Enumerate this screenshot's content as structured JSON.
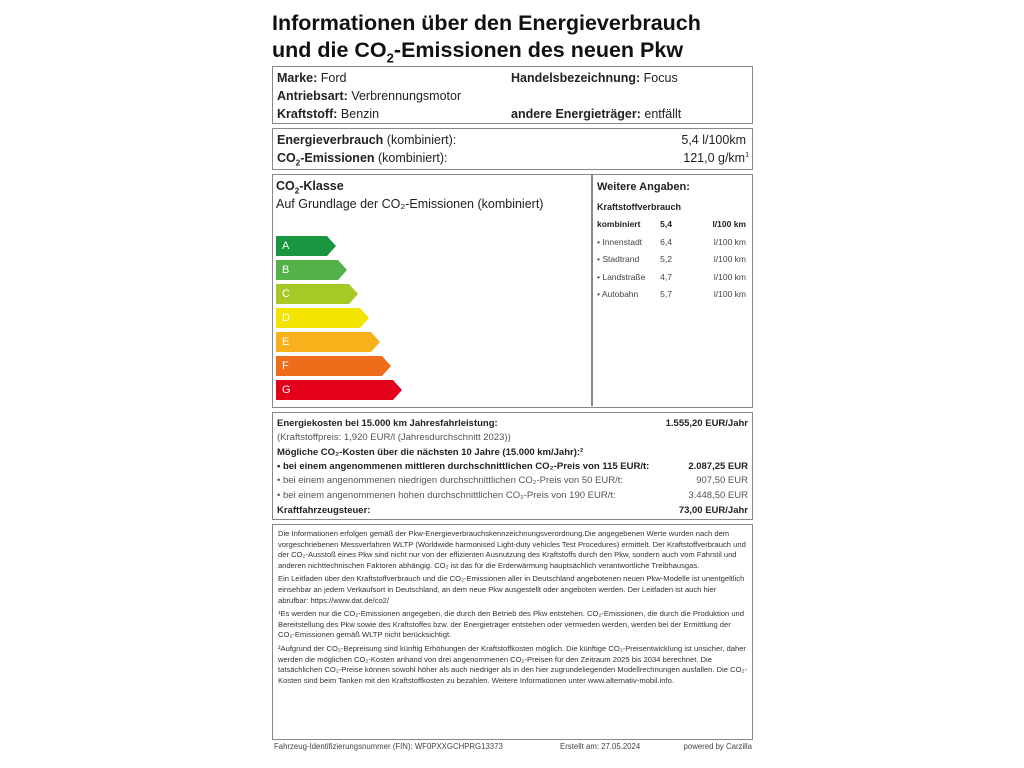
{
  "title": {
    "line1": "Informationen über den Energieverbrauch",
    "line2_pre": "und die CO",
    "line2_sub": "2",
    "line2_post": "-Emissionen des neuen Pkw"
  },
  "vehicle": {
    "marke_label": "Marke:",
    "marke": "Ford",
    "handel_label": "Handelsbezeichnung:",
    "handel": "Focus",
    "antrieb_label": "Antriebsart:",
    "antrieb": "Verbrennungsmotor",
    "kraftstoff_label": "Kraftstoff:",
    "kraftstoff": "Benzin",
    "andere_label": "andere Energieträger:",
    "andere": "entfällt"
  },
  "consumption": {
    "energy_label": "Energieverbrauch",
    "energy_qual": "(kombiniert):",
    "energy_value": "5,4 l/100km",
    "co2_label_pre": "CO",
    "co2_sub": "2",
    "co2_label_post": "-Emissionen",
    "co2_qual": "(kombiniert):",
    "co2_value": "121,0 g/km",
    "co2_sup": "1"
  },
  "co2class": {
    "heading_pre": "CO",
    "heading_sub": "2",
    "heading_post": "-Klasse",
    "subheading": "Auf Grundlage der CO₂-Emissionen (kombiniert)",
    "classes": [
      {
        "letter": "A",
        "color": "#1a9641"
      },
      {
        "letter": "B",
        "color": "#52b148"
      },
      {
        "letter": "C",
        "color": "#a6c925"
      },
      {
        "letter": "D",
        "color": "#f3e400"
      },
      {
        "letter": "E",
        "color": "#f7b21b"
      },
      {
        "letter": "F",
        "color": "#ee6c1a"
      },
      {
        "letter": "G",
        "color": "#e2001a"
      }
    ],
    "current": "D"
  },
  "further": {
    "heading": "Weitere Angaben:",
    "sub": "Kraftstoffverbrauch",
    "rows": [
      {
        "label": "kombiniert",
        "value": "5,4",
        "unit": "l/100 km",
        "bold": true
      },
      {
        "label": "• Innenstadt",
        "value": "6,4",
        "unit": "l/100 km"
      },
      {
        "label": "• Stadtrand",
        "value": "5,2",
        "unit": "l/100 km"
      },
      {
        "label": "• Landstraße",
        "value": "4,7",
        "unit": "l/100 km"
      },
      {
        "label": "• Autobahn",
        "value": "5,7",
        "unit": "l/100 km"
      }
    ]
  },
  "costs": {
    "energy_label": "Energiekosten bei 15.000 km Jahresfahrleistung:",
    "energy_value": "1.555,20 EUR/Jahr",
    "fuel_price": "(Kraftstoffpreis:  1,920 EUR/l (Jahresdurchschnitt 2023))",
    "co2_heading": "Mögliche CO₂-Kosten über die nächsten 10 Jahre (15.000 km/Jahr):²",
    "mid_label": "•  bei einem angenommenen mittleren durchschnittlichen CO₂-Preis von 115 EUR/t:",
    "mid_value": "2.087,25 EUR",
    "low_label": "•  bei einem angenommenen niedrigen durchschnittlichen CO₂-Preis von 50 EUR/t:",
    "low_value": "907,50 EUR",
    "high_label": "•  bei einem angenommenen hohen durchschnittlichen CO₂-Preis von 190 EUR/t:",
    "high_value": "3.448,50 EUR",
    "tax_label": "Kraftfahrzeugsteuer:",
    "tax_value": "73,00 EUR/Jahr"
  },
  "notes": {
    "p1": "Die Informationen erfolgen gemäß der Pkw-Energieverbrauchskennzeichnungsverordnung.Die angegebenen Werte wurden nach dem vorgeschriebenen Messverfahren WLTP (Worldwide harmonised Light-duty vehicles Test Procedures) ermittelt. Der Kraftstoffverbrauch und der CO₂-Ausstoß eines Pkw sind nicht nur von der effizienten Ausnutzung des Kraftstoffs durch den Pkw, sondern auch vom Fahrstil und anderen nichttechnischen Faktoren abhängig. CO₂ ist das für die Erderwärmung hauptsächlich verantwortliche Treibhausgas.",
    "p2": "Ein Leitfaden über den Kraftstoffverbrauch und die CO₂-Emissionen aller in Deutschland angebotenen neuen Pkw-Modelle ist unentgeltlich einsehbar an jedem Verkaufsort in Deutschland, an dem neue Pkw ausgestellt oder angeboten werden. Der Leitfaden ist auch hier abrufbar: https://www.dat.de/co2/",
    "p3": "¹Es werden nur die CO₂-Emissionen angegeben, die durch den Betrieb des Pkw entstehen. CO₂-Emissionen, die durch die Produktion und Bereitstellung des Pkw sowie des Kraftstoffes bzw. der Energieträger entstehen oder vermieden werden, werden bei der Ermittlung der CO₂-Emissionen gemäß WLTP nicht berücksichtigt.",
    "p4": "²Aufgrund der CO₂-Bepreisung sind künftig Erhöhungen der Kraftstoffkosten möglich. Die künftige CO₂-Preisentwicklung ist unsicher, daher werden die möglichen CO₂-Kosten anhand von drei angenommenen CO₂-Preisen für den Zeitraum 2025 bis 2034 berechnet. Die tatsächlichen CO₂-Preise können sowohl höher als auch niedriger als in den hier zugrundeliegenden Modellrechnungen ausfallen. Die CO₂-Kosten sind beim Tanken mit den Kraftstoffkosten zu bezahlen. Weitere Informationen unter www.alternativ-mobil.info."
  },
  "footer": {
    "fin": "Fahrzeug-Identifizierungsnummer (FIN):  WF0PXXGCHPRG13373",
    "created": "Erstellt am:  27.05.2024",
    "powered": "powered by Carzilla"
  }
}
